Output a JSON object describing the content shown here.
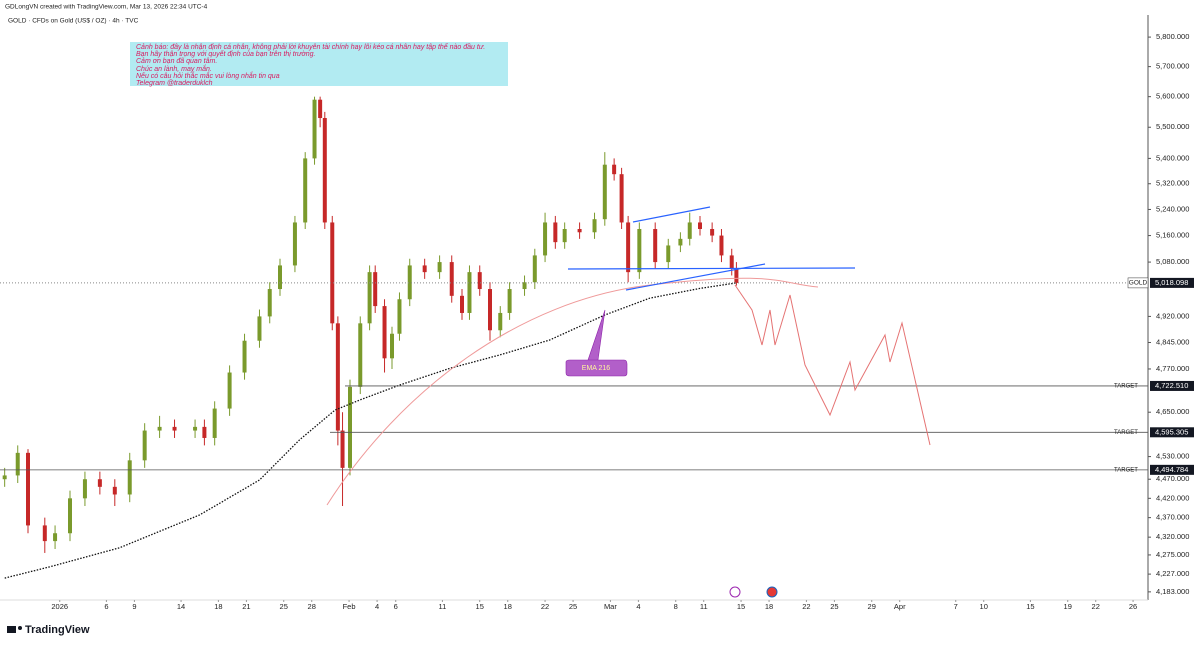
{
  "header": {
    "credit": "GDLongVN created with TradingView.com, Mar 13, 2026 22:34 UTC-4",
    "symbol": "GOLD · CFDs on Gold (US$ / OZ) · 4h · TVC"
  },
  "note": {
    "lines": [
      "Cảnh báo: đây là nhận định cá nhân, không phải lời khuyên tài chính hay lôi kéo cá nhân hay tập thể nào đầu tư.",
      "Bạn hãy thận trọng với quyết định của bạn trên thị trường.",
      "Cảm ơn bạn đã quan tâm.",
      "Chúc an lành, may mắn.",
      "Nếu có câu hỏi thắc mắc vui lòng nhắn tin qua",
      "Telegram @traderduklch"
    ]
  },
  "footer": {
    "logo": "TradingView"
  },
  "chart_data": {
    "type": "candlestick",
    "log_scale": true,
    "up_color": "#7a9a2c",
    "down_color": "#c62828",
    "x": [
      -4.9,
      -3.5,
      -2.4,
      -0.6,
      0.5,
      2.1,
      3.7,
      5.3,
      6.9,
      8.5,
      10.1,
      11.7,
      13.3,
      15.5,
      16.5,
      17.6,
      19.2,
      20.8,
      22.4,
      23.5,
      24.6,
      26.2,
      27.3,
      28.3,
      28.9,
      29.4,
      30.2,
      30.8,
      31.3,
      32.1,
      33.2,
      34.2,
      34.8,
      35.8,
      36.6,
      37.4,
      38.5,
      40.1,
      41.7,
      43.0,
      44.1,
      44.9,
      46.0,
      47.1,
      48.2,
      49.2,
      50.8,
      51.9,
      53.0,
      54.1,
      55.1,
      56.7,
      58.3,
      59.4,
      60.4,
      61.2,
      61.9,
      63.1,
      64.8,
      66.2,
      67.5,
      68.5,
      69.6,
      70.9,
      71.9,
      73.0,
      73.5
    ],
    "open": [
      4470,
      4480,
      4540,
      4350,
      4310,
      4330,
      4420,
      4470,
      4450,
      4430,
      4520,
      4600,
      4610,
      4600,
      4610,
      4580,
      4660,
      4760,
      4850,
      4920,
      5000,
      5070,
      5200,
      5400,
      5590,
      5530,
      5200,
      4900,
      4600,
      4500,
      4720,
      4900,
      5050,
      4950,
      4800,
      4870,
      4970,
      5070,
      5050,
      5080,
      4980,
      4930,
      5050,
      5000,
      4880,
      4930,
      5000,
      5020,
      5100,
      5200,
      5140,
      5180,
      5170,
      5210,
      5380,
      5350,
      5200,
      5050,
      5180,
      5080,
      5130,
      5150,
      5200,
      5180,
      5160,
      5100,
      5060
    ],
    "high": [
      4500,
      4560,
      4550,
      4370,
      4350,
      4440,
      4490,
      4490,
      4470,
      4540,
      4620,
      4640,
      4630,
      4630,
      4630,
      4680,
      4780,
      4870,
      4940,
      5020,
      5090,
      5220,
      5420,
      5600,
      5600,
      5550,
      5220,
      4920,
      4650,
      4740,
      4920,
      5070,
      5070,
      4970,
      4890,
      4990,
      5090,
      5090,
      5100,
      5100,
      5000,
      5070,
      5070,
      5020,
      4950,
      5020,
      5040,
      5120,
      5230,
      5220,
      5200,
      5200,
      5230,
      5420,
      5400,
      5370,
      5220,
      5200,
      5200,
      5150,
      5170,
      5230,
      5220,
      5200,
      5180,
      5120,
      5080
    ],
    "low": [
      4450,
      4460,
      4330,
      4280,
      4290,
      4310,
      4400,
      4430,
      4400,
      4410,
      4500,
      4580,
      4580,
      4580,
      4560,
      4560,
      4640,
      4740,
      4830,
      4900,
      4980,
      5050,
      5180,
      5380,
      5500,
      5180,
      4880,
      4560,
      4400,
      4480,
      4700,
      4880,
      4930,
      4760,
      4770,
      4850,
      4950,
      5030,
      5030,
      4960,
      4910,
      4910,
      4980,
      4850,
      4860,
      4910,
      4980,
      5000,
      5080,
      5120,
      5120,
      5150,
      5150,
      5190,
      5330,
      5180,
      5020,
      5030,
      5060,
      5060,
      5110,
      5130,
      5160,
      5140,
      5080,
      5040,
      5010
    ],
    "close": [
      4480,
      4540,
      4350,
      4310,
      4330,
      4420,
      4470,
      4450,
      4430,
      4520,
      4600,
      4610,
      4600,
      4610,
      4580,
      4660,
      4760,
      4850,
      4920,
      5000,
      5070,
      5200,
      5400,
      5590,
      5530,
      5200,
      4900,
      4600,
      4500,
      4720,
      4900,
      5050,
      4950,
      4800,
      4870,
      4970,
      5070,
      5050,
      5080,
      4980,
      4930,
      5050,
      5000,
      4880,
      4930,
      5000,
      5020,
      5100,
      5200,
      5140,
      5180,
      5170,
      5210,
      5380,
      5350,
      5200,
      5050,
      5180,
      5080,
      5130,
      5150,
      5200,
      5180,
      5160,
      5100,
      5060,
      5018
    ],
    "series": [
      {
        "name": "EMA 216",
        "color": "#111111",
        "x": [
          -4.9,
          -0.1,
          7.4,
          16.0,
          22.4,
          26.7,
          30.5,
          33.2,
          37.4,
          42.8,
          48.2,
          53.5,
          59.4,
          64.2,
          69.6,
          73.5
        ],
        "values": [
          4217,
          4245,
          4293,
          4377,
          4468,
          4575,
          4656,
          4684,
          4725,
          4772,
          4810,
          4852,
          4924,
          4973,
          5002,
          5018
        ]
      }
    ],
    "last_price": {
      "name": "GOLD",
      "value": 5018.098,
      "label": "5,018.098"
    },
    "targets": [
      {
        "name": "TARGET",
        "value": 4722.51,
        "label": "4,722.510"
      },
      {
        "name": "TARGET",
        "value": 4595.305,
        "label": "4,595.305"
      },
      {
        "name": "TARGET",
        "value": 4494.784,
        "label": "4,494.784"
      }
    ],
    "ylim": [
      4163,
      5876
    ],
    "yticks": [
      {
        "value": 5800,
        "label": "5,800.000"
      },
      {
        "value": 5700,
        "label": "5,700.000"
      },
      {
        "value": 5600,
        "label": "5,600.000"
      },
      {
        "value": 5500,
        "label": "5,500.000"
      },
      {
        "value": 5400,
        "label": "5,400.000"
      },
      {
        "value": 5320,
        "label": "5,320.000"
      },
      {
        "value": 5240,
        "label": "5,240.000"
      },
      {
        "value": 5160,
        "label": "5,160.000"
      },
      {
        "value": 5080,
        "label": "5,080.000"
      },
      {
        "value": 4920,
        "label": "4,920.000"
      },
      {
        "value": 4845,
        "label": "4,845.000"
      },
      {
        "value": 4770,
        "label": "4,770.000"
      },
      {
        "value": 4650,
        "label": "4,650.000"
      },
      {
        "value": 4530,
        "label": "4,530.000"
      },
      {
        "value": 4470,
        "label": "4,470.000"
      },
      {
        "value": 4420,
        "label": "4,420.000"
      },
      {
        "value": 4370,
        "label": "4,370.000"
      },
      {
        "value": 4320,
        "label": "4,320.000"
      },
      {
        "value": 4275,
        "label": "4,275.000"
      },
      {
        "value": 4227,
        "label": "4,227.000"
      },
      {
        "value": 4183,
        "label": "4,183.000"
      }
    ],
    "xlim": [
      -5.4,
      117.6
    ],
    "xticks": [
      {
        "value": 1,
        "label": "2026"
      },
      6,
      9,
      14,
      18,
      21,
      25,
      28,
      {
        "value": 32,
        "label": "Feb"
      },
      {
        "value": 35,
        "label": "4"
      },
      {
        "value": 37,
        "label": "6"
      },
      {
        "value": 42,
        "label": "11"
      },
      {
        "value": 46,
        "label": "15"
      },
      {
        "value": 49,
        "label": "18"
      },
      {
        "value": 53,
        "label": "22"
      },
      {
        "value": 56,
        "label": "25"
      },
      {
        "value": 60,
        "label": "Mar"
      },
      {
        "value": 63,
        "label": "4"
      },
      {
        "value": 67,
        "label": "8"
      },
      {
        "value": 70,
        "label": "11"
      },
      {
        "value": 74,
        "label": "15"
      },
      {
        "value": 77,
        "label": "18"
      },
      {
        "value": 81,
        "label": "22"
      },
      {
        "value": 84,
        "label": "25"
      },
      {
        "value": 88,
        "label": "29"
      },
      {
        "value": 91,
        "label": "Apr"
      },
      {
        "value": 97,
        "label": "7"
      },
      {
        "value": 100,
        "label": "10"
      },
      {
        "value": 105,
        "label": "15"
      },
      {
        "value": 109,
        "label": "19"
      },
      {
        "value": 112,
        "label": "22"
      },
      {
        "value": 116,
        "label": "26"
      }
    ]
  }
}
